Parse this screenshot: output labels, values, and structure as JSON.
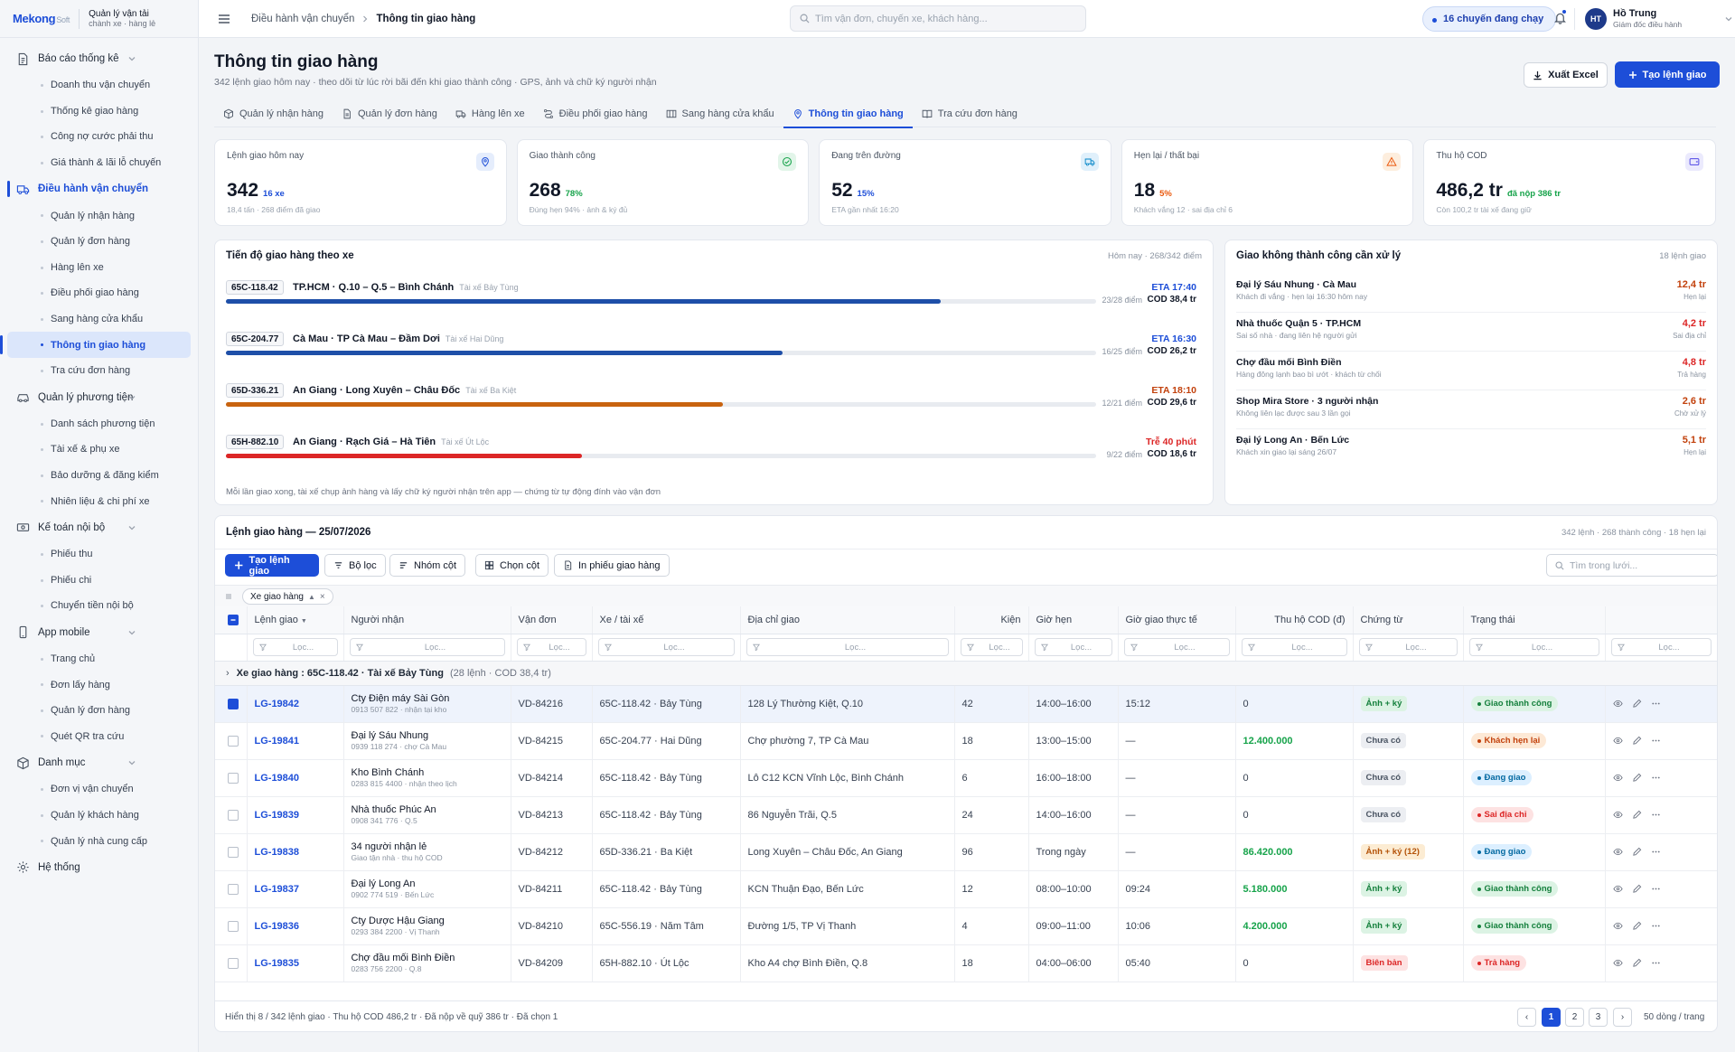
{
  "brand": {
    "logo_main": "Mekong",
    "logo_soft": "Soft",
    "line1": "Quản lý vận tải",
    "line2": "chành xe · hàng lẻ"
  },
  "sidebar": [
    {
      "label": "Báo cáo thống kê",
      "icon": "report-icon",
      "items": [
        "Doanh thu vận chuyển",
        "Thống kê giao hàng",
        "Công nợ cước phải thu",
        "Giá thành & lãi lỗ chuyến"
      ]
    },
    {
      "label": "Điều hành vận chuyển",
      "icon": "truck-icon",
      "active": true,
      "items": [
        "Quản lý nhận hàng",
        "Quản lý đơn hàng",
        "Hàng lên xe",
        "Điều phối giao hàng",
        "Sang hàng cửa khẩu",
        "Thông tin giao hàng",
        "Tra cứu đơn hàng"
      ]
    },
    {
      "label": "Quản lý phương tiện",
      "icon": "vehicle-icon",
      "items": [
        "Danh sách phương tiện",
        "Tài xế & phụ xe",
        "Bảo dưỡng & đăng kiểm",
        "Nhiên liệu & chi phí xe"
      ]
    },
    {
      "label": "Kế toán nội bộ",
      "icon": "cash-icon",
      "items": [
        "Phiếu thu",
        "Phiếu chi",
        "Chuyển tiền nội bộ"
      ]
    },
    {
      "label": "App mobile",
      "icon": "phone-icon",
      "items": [
        "Trang chủ",
        "Đơn lấy hàng",
        "Quản lý đơn hàng",
        "Quét QR tra cứu"
      ]
    },
    {
      "label": "Danh mục",
      "icon": "box-icon",
      "items": [
        "Đơn vị vận chuyển",
        "Quản lý khách hàng",
        "Quản lý nhà cung cấp"
      ]
    },
    {
      "label": "Hệ thống",
      "icon": "gear-icon",
      "items": []
    }
  ],
  "sidebar_active_item": "Thông tin giao hàng",
  "topbar": {
    "crumb1": "Điều hành vận chuyển",
    "crumb2": "Thông tin giao hàng",
    "search_placeholder": "Tìm vận đơn, chuyến xe, khách hàng...",
    "running": "16 chuyến đang chạy",
    "user_initials": "HT",
    "user_name": "Hồ Trung",
    "user_role": "Giám đốc điều hành"
  },
  "header": {
    "title": "Thông tin giao hàng",
    "subtitle": "342 lệnh giao hôm nay · theo dõi từ lúc rời bãi đến khi giao thành công · GPS, ảnh và chữ ký người nhận",
    "export_label": "Xuất Excel",
    "create_label": "Tạo lệnh giao"
  },
  "tabs": [
    {
      "label": "Quản lý nhận hàng",
      "icon": "box-icon"
    },
    {
      "label": "Quản lý đơn hàng",
      "icon": "document-icon"
    },
    {
      "label": "Hàng lên xe",
      "icon": "truck-icon"
    },
    {
      "label": "Điều phối giao hàng",
      "icon": "route-icon"
    },
    {
      "label": "Sang hàng cửa khẩu",
      "icon": "gate-icon"
    },
    {
      "label": "Thông tin giao hàng",
      "icon": "pin-icon",
      "active": true
    },
    {
      "label": "Tra cứu đơn hàng",
      "icon": "book-icon"
    }
  ],
  "kpis": [
    {
      "label": "Lệnh giao hôm nay",
      "value": "342",
      "sub": "16 xe",
      "sub_color": "#1d4ed8",
      "note": "18,4 tấn · 268 điểm đã giao",
      "icon": "pin-icon",
      "icon_color": "#1d4ed8",
      "icon_bg": "#e5edfc"
    },
    {
      "label": "Giao thành công",
      "value": "268",
      "sub": "78%",
      "sub_color": "#16a34a",
      "note": "Đúng hẹn 94% · ảnh & ký đủ",
      "icon": "check-circle-icon",
      "icon_color": "#16a34a",
      "icon_bg": "#e2f5e9"
    },
    {
      "label": "Đang trên đường",
      "value": "52",
      "sub": "15%",
      "sub_color": "#1d4ed8",
      "note": "ETA gần nhất 16:20",
      "icon": "truck-icon",
      "icon_color": "#0284c7",
      "icon_bg": "#e0f0fb"
    },
    {
      "label": "Hẹn lại / thất bại",
      "value": "18",
      "sub": "5%",
      "sub_color": "#ea580c",
      "note": "Khách vắng 12 · sai địa chỉ 6",
      "icon": "warning-icon",
      "icon_color": "#ea580c",
      "icon_bg": "#fdeede"
    },
    {
      "label": "Thu hộ COD",
      "value": "486,2 tr",
      "sub": "đã nộp 386 tr",
      "sub_color": "#16a34a",
      "note": "Còn 100,2 tr tài xế đang giữ",
      "icon": "wallet-icon",
      "icon_color": "#4f46e5",
      "icon_bg": "#ebeafd"
    }
  ],
  "progress": {
    "title": "Tiến độ giao hàng theo xe",
    "meta": "Hôm nay · 268/342 điểm",
    "rows": [
      {
        "plate": "65C-118.42",
        "route": "TP.HCM · Q.10 – Q.5 – Bình Chánh",
        "driver": "Tài xế Bảy Tùng",
        "eta": "ETA 17:40",
        "eta_color": "#1d4ed8",
        "fraction": 0.821,
        "bar_color": "#1e4fa8",
        "points": "23/28 điểm",
        "cod": "COD 38,4 tr"
      },
      {
        "plate": "65C-204.77",
        "route": "Cà Mau · TP Cà Mau – Đầm Dơi",
        "driver": "Tài xế Hai Dũng",
        "eta": "ETA 16:30",
        "eta_color": "#1d4ed8",
        "fraction": 0.64,
        "bar_color": "#1e4fa8",
        "points": "16/25 điểm",
        "cod": "COD 26,2 tr"
      },
      {
        "plate": "65D-336.21",
        "route": "An Giang · Long Xuyên – Châu Đốc",
        "driver": "Tài xế Ba Kiệt",
        "eta": "ETA 18:10",
        "eta_color": "#c2410c",
        "fraction": 0.571,
        "bar_color": "#c8630f",
        "points": "12/21 điểm",
        "cod": "COD 29,6 tr"
      },
      {
        "plate": "65H-882.10",
        "route": "An Giang · Rạch Giá – Hà Tiên",
        "driver": "Tài xế Út Lộc",
        "eta": "Trễ 40 phút",
        "eta_color": "#dc2626",
        "fraction": 0.409,
        "bar_color": "#dc2626",
        "points": "9/22 điểm",
        "cod": "COD 18,6 tr"
      }
    ],
    "note": "Mỗi lần giao xong, tài xế chụp ảnh hàng và lấy chữ ký người nhận trên app — chứng từ tự động đính vào vận đơn"
  },
  "failed": {
    "title": "Giao không thành công cần xử lý",
    "meta": "18 lệnh giao",
    "items": [
      {
        "name": "Đại lý Sáu Nhung · Cà Mau",
        "desc": "Khách đi vắng · hẹn lại 16:30 hôm nay",
        "amount": "12,4 tr",
        "amount_color": "#c2410c",
        "tag": "Hẹn lại"
      },
      {
        "name": "Nhà thuốc Quận 5 · TP.HCM",
        "desc": "Sai số nhà · đang liên hệ người gửi",
        "amount": "4,2 tr",
        "amount_color": "#dc2626",
        "tag": "Sai địa chỉ"
      },
      {
        "name": "Chợ đầu mối Bình Điền",
        "desc": "Hàng đông lạnh bao bì ướt · khách từ chối",
        "amount": "4,8 tr",
        "amount_color": "#dc2626",
        "tag": "Trả hàng"
      },
      {
        "name": "Shop Mira Store · 3 người nhận",
        "desc": "Không liên lạc được sau 3 lần gọi",
        "amount": "2,6 tr",
        "amount_color": "#c2410c",
        "tag": "Chờ xử lý"
      },
      {
        "name": "Đại lý Long An · Bến Lức",
        "desc": "Khách xin giao lại sáng 26/07",
        "amount": "5,1 tr",
        "amount_color": "#c2410c",
        "tag": "Hẹn lại"
      }
    ]
  },
  "grid": {
    "title": "Lệnh giao hàng — 25/07/2026",
    "meta": "342 lệnh · 268 thành công · 18 hẹn lại",
    "buttons": {
      "create": "Tạo lệnh giao",
      "filter": "Bộ lọc",
      "group": "Nhóm cột",
      "columns": "Chọn cột",
      "print": "In phiếu giao hàng"
    },
    "search_placeholder": "Tìm trong lưới...",
    "group_chip": "Xe giao hàng",
    "columns": [
      "Lệnh giao",
      "Người nhận",
      "Vận đơn",
      "Xe / tài xế",
      "Địa chỉ giao",
      "Kiện",
      "Giờ hẹn",
      "Giờ giao thực tế",
      "Thu hộ COD (đ)",
      "Chứng từ",
      "Trạng thái"
    ],
    "filter_placeholder": "Lọc...",
    "group_row": {
      "label": "Xe giao hàng",
      "value": "65C-118.42 · Tài xế Bảy Tùng",
      "count": "(28 lệnh · COD 38,4 tr)"
    },
    "rows": [
      {
        "id": "LG-19842",
        "name": "Cty Điện máy Sài Gòn",
        "sub": "0913 507 822 · nhận tại kho",
        "waybill": "VD-84216",
        "vehicle": "65C-118.42 · Bảy Tùng",
        "address": "128 Lý Thường Kiệt, Q.10",
        "pieces": "42",
        "slot": "14:00–16:00",
        "actual": "15:12",
        "cod": "0",
        "cod_color": "#374151",
        "doc": "Ảnh + ký",
        "doc_fg": "#15803d",
        "doc_bg": "#dcf3e4",
        "status": "Giao thành công",
        "st_fg": "#15803d",
        "st_bg": "#dcf3e4",
        "checked": true
      },
      {
        "id": "LG-19841",
        "name": "Đại lý Sáu Nhung",
        "sub": "0939 118 274 · chợ Cà Mau",
        "waybill": "VD-84215",
        "vehicle": "65C-204.77 · Hai Dũng",
        "address": "Chợ phường 7, TP Cà Mau",
        "pieces": "18",
        "slot": "13:00–15:00",
        "actual": "—",
        "cod": "12.400.000",
        "cod_color": "#16a34a",
        "doc": "Chưa có",
        "doc_fg": "#4b5563",
        "doc_bg": "#eceef2",
        "status": "Khách hẹn lại",
        "st_fg": "#c2410c",
        "st_bg": "#fde9d6",
        "checked": false
      },
      {
        "id": "LG-19840",
        "name": "Kho Bình Chánh",
        "sub": "0283 815 4400 · nhận theo lịch",
        "waybill": "VD-84214",
        "vehicle": "65C-118.42 · Bảy Tùng",
        "address": "Lô C12 KCN Vĩnh Lộc, Bình Chánh",
        "pieces": "6",
        "slot": "16:00–18:00",
        "actual": "—",
        "cod": "0",
        "cod_color": "#374151",
        "doc": "Chưa có",
        "doc_fg": "#4b5563",
        "doc_bg": "#eceef2",
        "status": "Đang giao",
        "st_fg": "#0369a1",
        "st_bg": "#dcefff",
        "checked": false
      },
      {
        "id": "LG-19839",
        "name": "Nhà thuốc Phúc An",
        "sub": "0908 341 776 · Q.5",
        "waybill": "VD-84213",
        "vehicle": "65C-118.42 · Bảy Tùng",
        "address": "86 Nguyễn Trãi, Q.5",
        "pieces": "24",
        "slot": "14:00–16:00",
        "actual": "—",
        "cod": "0",
        "cod_color": "#374151",
        "doc": "Chưa có",
        "doc_fg": "#4b5563",
        "doc_bg": "#eceef2",
        "status": "Sai địa chỉ",
        "st_fg": "#dc2626",
        "st_bg": "#fde2e2",
        "checked": false
      },
      {
        "id": "LG-19838",
        "name": "34 người nhận lẻ",
        "sub": "Giao tận nhà · thu hộ COD",
        "waybill": "VD-84212",
        "vehicle": "65D-336.21 · Ba Kiệt",
        "address": "Long Xuyên – Châu Đốc, An Giang",
        "pieces": "96",
        "slot": "Trong ngày",
        "actual": "—",
        "cod": "86.420.000",
        "cod_color": "#16a34a",
        "doc": "Ảnh + ký (12)",
        "doc_fg": "#b45309",
        "doc_bg": "#fcecd3",
        "status": "Đang giao",
        "st_fg": "#0369a1",
        "st_bg": "#dcefff",
        "checked": false
      },
      {
        "id": "LG-19837",
        "name": "Đại lý Long An",
        "sub": "0902 774 519 · Bến Lức",
        "waybill": "VD-84211",
        "vehicle": "65C-118.42 · Bảy Tùng",
        "address": "KCN Thuận Đạo, Bến Lức",
        "pieces": "12",
        "slot": "08:00–10:00",
        "actual": "09:24",
        "cod": "5.180.000",
        "cod_color": "#16a34a",
        "doc": "Ảnh + ký",
        "doc_fg": "#15803d",
        "doc_bg": "#dcf3e4",
        "status": "Giao thành công",
        "st_fg": "#15803d",
        "st_bg": "#dcf3e4",
        "checked": false
      },
      {
        "id": "LG-19836",
        "name": "Cty Dược Hậu Giang",
        "sub": "0293 384 2200 · Vị Thanh",
        "waybill": "VD-84210",
        "vehicle": "65C-556.19 · Năm Tâm",
        "address": "Đường 1/5, TP Vị Thanh",
        "pieces": "4",
        "slot": "09:00–11:00",
        "actual": "10:06",
        "cod": "4.200.000",
        "cod_color": "#16a34a",
        "doc": "Ảnh + ký",
        "doc_fg": "#15803d",
        "doc_bg": "#dcf3e4",
        "status": "Giao thành công",
        "st_fg": "#15803d",
        "st_bg": "#dcf3e4",
        "checked": false
      },
      {
        "id": "LG-19835",
        "name": "Chợ đầu mối Bình Điền",
        "sub": "0283 756 2200 · Q.8",
        "waybill": "VD-84209",
        "vehicle": "65H-882.10 · Út Lộc",
        "address": "Kho A4 chợ Bình Điền, Q.8",
        "pieces": "18",
        "slot": "04:00–06:00",
        "actual": "05:40",
        "cod": "0",
        "cod_color": "#374151",
        "doc": "Biên bản",
        "doc_fg": "#dc2626",
        "doc_bg": "#fde2e2",
        "status": "Trả hàng",
        "st_fg": "#dc2626",
        "st_bg": "#fde2e2",
        "checked": false
      }
    ],
    "footer": "Hiển thị 8 / 342 lệnh giao · Thu hộ COD 486,2 tr · Đã nộp về quỹ 386 tr · Đã chọn 1",
    "pages": [
      "1",
      "2",
      "3"
    ],
    "page_size": "50 dòng / trang"
  }
}
